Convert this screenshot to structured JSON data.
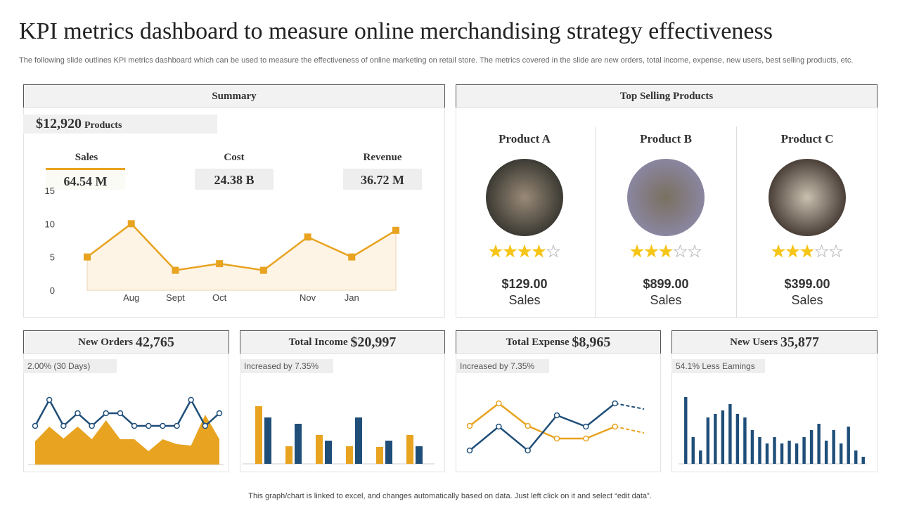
{
  "title": "KPI metrics dashboard to measure online merchandising strategy effectiveness",
  "subtitle": "The following slide outlines KPI metrics dashboard which can be used to measure the effectiveness of online marketing on retail store. The metrics covered in the slide are new orders, total income, expense, new users, best selling products, etc.",
  "footer": "This graph/chart is linked to excel, and changes automatically based on data. Just left click on it and select “edit data”.",
  "summary": {
    "header": "Summary",
    "total": "$12,920",
    "total_label": "Products",
    "kpis": [
      {
        "label": "Sales",
        "value": "64.54 M"
      },
      {
        "label": "Cost",
        "value": "24.38 B"
      },
      {
        "label": "Revenue",
        "value": "36.72 M"
      }
    ]
  },
  "top_selling": {
    "header": "Top Selling Products",
    "max_rating": 5,
    "products": [
      {
        "name": "Product A",
        "rating": 4,
        "price": "$129.00",
        "price_label": "Sales"
      },
      {
        "name": "Product B",
        "rating": 3,
        "price": "$899.00",
        "price_label": "Sales"
      },
      {
        "name": "Product C",
        "rating": 3,
        "price": "$399.00",
        "price_label": "Sales"
      }
    ]
  },
  "cards": [
    {
      "title": "New Orders",
      "value": "42,765",
      "note": "2.00% (30 Days)"
    },
    {
      "title": "Total Income",
      "value": "$20,997",
      "note": "Increased by 7.35%"
    },
    {
      "title": "Total Expense",
      "value": "$8,965",
      "note": "Increased by 7.35%"
    },
    {
      "title": "New Users",
      "value": "35,877",
      "note": "54.1% Less Eamings"
    }
  ],
  "chart_data": [
    {
      "type": "line",
      "categories": [
        null,
        "Aug",
        "Sept",
        "Oct",
        null,
        "Nov",
        "Jan",
        null
      ],
      "ylim": [
        0,
        15
      ],
      "yticks": [
        0,
        5,
        10,
        15
      ],
      "series": [
        {
          "color": "#e8a320",
          "fill": "#fdf4e6",
          "marker": "square",
          "values": [
            5,
            10,
            3,
            4,
            3,
            8,
            5,
            9
          ]
        }
      ]
    },
    {
      "type": "line",
      "ylim": [
        0,
        100
      ],
      "series": [
        {
          "color": "#e8a320",
          "fill": "#e8a320",
          "values": [
            33,
            54,
            37,
            54,
            36,
            63,
            36,
            36,
            19,
            36,
            29,
            27,
            71,
            36
          ]
        },
        {
          "color": "#1f4e79",
          "marker": "circle",
          "values": [
            55,
            92,
            55,
            73,
            55,
            73,
            73,
            55,
            55,
            55,
            55,
            92,
            55,
            73
          ]
        }
      ]
    },
    {
      "type": "bar",
      "ylim": [
        0,
        100
      ],
      "series": [
        {
          "color": "#e8a320",
          "values": [
            82,
            25,
            41,
            25,
            24,
            41
          ]
        },
        {
          "color": "#1f4e79",
          "values": [
            66,
            57,
            33,
            66,
            33,
            25
          ]
        }
      ]
    },
    {
      "type": "line",
      "ylim": [
        0,
        100
      ],
      "series": [
        {
          "color": "#e8a320",
          "marker": "circle",
          "forecast_points": 1,
          "values": [
            66,
            98,
            66,
            48,
            48,
            65,
            56
          ]
        },
        {
          "color": "#1f4e79",
          "marker": "circle",
          "forecast_points": 1,
          "values": [
            31,
            65,
            31,
            81,
            65,
            98,
            90
          ]
        }
      ]
    },
    {
      "type": "bar",
      "ylim": [
        0,
        100
      ],
      "series": [
        {
          "color": "#1f4e79",
          "values": [
            95,
            38,
            19,
            66,
            71,
            76,
            85,
            71,
            66,
            48,
            38,
            29,
            38,
            29,
            33,
            29,
            38,
            48,
            57,
            33,
            48,
            29,
            53,
            19,
            10
          ]
        }
      ]
    }
  ]
}
